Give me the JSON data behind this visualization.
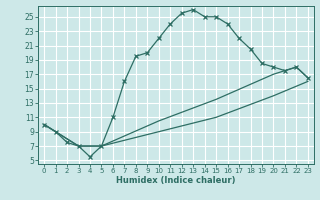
{
  "xlabel": "Humidex (Indice chaleur)",
  "bg_color": "#cde8e8",
  "grid_color": "#ffffff",
  "line_color": "#2e6e64",
  "xlim": [
    -0.5,
    23.5
  ],
  "ylim": [
    4.5,
    26.5
  ],
  "xticks": [
    0,
    1,
    2,
    3,
    4,
    5,
    6,
    7,
    8,
    9,
    10,
    11,
    12,
    13,
    14,
    15,
    16,
    17,
    18,
    19,
    20,
    21,
    22,
    23
  ],
  "yticks": [
    5,
    7,
    9,
    11,
    13,
    15,
    17,
    19,
    21,
    23,
    25
  ],
  "line1_x": [
    0,
    1,
    2,
    3,
    4,
    5,
    6,
    7,
    8,
    9,
    10,
    11,
    12,
    13,
    14,
    15,
    16,
    17,
    18,
    19,
    20,
    21,
    22,
    23
  ],
  "line1_y": [
    10,
    9,
    7.5,
    7,
    5.5,
    7,
    11,
    16,
    19.5,
    20,
    22,
    24,
    25.5,
    26,
    25,
    25,
    24,
    22,
    20.5,
    18.5,
    18,
    17.5,
    18,
    16.5
  ],
  "line2_x": [
    0,
    3,
    5,
    10,
    15,
    20,
    23
  ],
  "line2_y": [
    10,
    7,
    7,
    9,
    11,
    14,
    16
  ],
  "line3_x": [
    0,
    3,
    5,
    10,
    15,
    20,
    21,
    22,
    23
  ],
  "line3_y": [
    10,
    7,
    7,
    10.5,
    13.5,
    17,
    17.5,
    18,
    16.5
  ],
  "xlabel_fontsize": 6,
  "tick_fontsize_x": 5,
  "tick_fontsize_y": 5.5
}
